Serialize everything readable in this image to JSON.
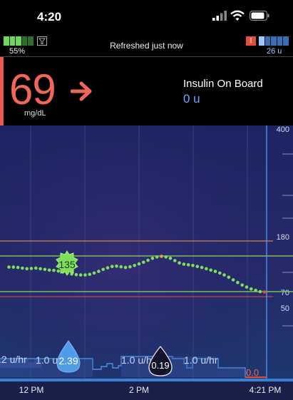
{
  "status": {
    "time": "4:20"
  },
  "topbar": {
    "pump_battery_pct": "55%",
    "refreshed_text": "Refreshed just now",
    "alert_symbol": "!",
    "reservoir_units": "26 u"
  },
  "glucose": {
    "value": "69",
    "unit": "mg/dL",
    "trend": "arrow-right-icon"
  },
  "iob": {
    "label": "Insulin On Board",
    "value": "0 u"
  },
  "chart": {
    "y_labels": [
      "400",
      "180",
      "70",
      "50"
    ],
    "x_labels": [
      "12 PM",
      "2 PM",
      "4:21 PM"
    ],
    "bolus_markers": [
      "2.39",
      "0.19"
    ],
    "basal_labels": [
      ".2 u/hr",
      "1.0 u",
      "1.0 u/hr",
      "1.0 u/hr",
      "0.0"
    ],
    "bubble_value": "135"
  },
  "chart_data": {
    "type": "scatter",
    "title": "",
    "xlabel": "",
    "ylabel": "",
    "x_ticks": [
      "12 PM",
      "2 PM",
      "4:21 PM"
    ],
    "y_ticks": [
      400,
      180,
      70,
      50
    ],
    "target_range": [
      70,
      180
    ],
    "glucose_series": [
      {
        "x": "11:35",
        "y": 145
      },
      {
        "x": "11:40",
        "y": 145
      },
      {
        "x": "11:45",
        "y": 144
      },
      {
        "x": "11:50",
        "y": 142
      },
      {
        "x": "11:55",
        "y": 140
      },
      {
        "x": "12:00",
        "y": 141
      },
      {
        "x": "12:05",
        "y": 142
      },
      {
        "x": "12:10",
        "y": 140
      },
      {
        "x": "12:15",
        "y": 138
      },
      {
        "x": "12:20",
        "y": 136
      },
      {
        "x": "12:25",
        "y": 135
      },
      {
        "x": "12:30",
        "y": 133
      },
      {
        "x": "12:35",
        "y": 130
      },
      {
        "x": "12:40",
        "y": 127
      },
      {
        "x": "12:45",
        "y": 124
      },
      {
        "x": "12:50",
        "y": 122
      },
      {
        "x": "12:55",
        "y": 121
      },
      {
        "x": "13:00",
        "y": 121
      },
      {
        "x": "13:05",
        "y": 123
      },
      {
        "x": "13:10",
        "y": 127
      },
      {
        "x": "13:15",
        "y": 132
      },
      {
        "x": "13:20",
        "y": 138
      },
      {
        "x": "13:25",
        "y": 143
      },
      {
        "x": "13:30",
        "y": 147
      },
      {
        "x": "13:35",
        "y": 148
      },
      {
        "x": "13:40",
        "y": 146
      },
      {
        "x": "13:45",
        "y": 144
      },
      {
        "x": "13:50",
        "y": 146
      },
      {
        "x": "13:55",
        "y": 150
      },
      {
        "x": "14:00",
        "y": 155
      },
      {
        "x": "14:05",
        "y": 160
      },
      {
        "x": "14:10",
        "y": 166
      },
      {
        "x": "14:15",
        "y": 172
      },
      {
        "x": "14:20",
        "y": 176
      },
      {
        "x": "14:25",
        "y": 178
      },
      {
        "x": "14:30",
        "y": 176
      },
      {
        "x": "14:35",
        "y": 172
      },
      {
        "x": "14:40",
        "y": 165
      },
      {
        "x": "14:45",
        "y": 158
      },
      {
        "x": "14:50",
        "y": 154
      },
      {
        "x": "14:55",
        "y": 152
      },
      {
        "x": "15:00",
        "y": 150
      },
      {
        "x": "15:05",
        "y": 147
      },
      {
        "x": "15:10",
        "y": 144
      },
      {
        "x": "15:15",
        "y": 140
      },
      {
        "x": "15:20",
        "y": 136
      },
      {
        "x": "15:25",
        "y": 132
      },
      {
        "x": "15:30",
        "y": 127
      },
      {
        "x": "15:35",
        "y": 121
      },
      {
        "x": "15:40",
        "y": 114
      },
      {
        "x": "15:45",
        "y": 106
      },
      {
        "x": "15:50",
        "y": 98
      },
      {
        "x": "15:55",
        "y": 90
      },
      {
        "x": "16:00",
        "y": 84
      },
      {
        "x": "16:05",
        "y": 78
      },
      {
        "x": "16:10",
        "y": 74
      },
      {
        "x": "16:15",
        "y": 70
      },
      {
        "x": "16:20",
        "y": 69
      }
    ],
    "boluses": [
      {
        "x": "12:40",
        "value": 2.39
      },
      {
        "x": "14:15",
        "value": 0.19
      }
    ],
    "carbs": [
      {
        "x": "12:25",
        "value": 135
      }
    ],
    "basal_current": 0.0
  },
  "colors": {
    "bg_low": "#f0675a",
    "iob_blue": "#6aa8ff",
    "glucose_dot": "#7ee05a",
    "target_line": "#8fd65a",
    "high_line": "#f0a23a",
    "low_line": "#e74c3c",
    "basal_line": "#4a90e2",
    "chart_bg": "#1b2057"
  }
}
